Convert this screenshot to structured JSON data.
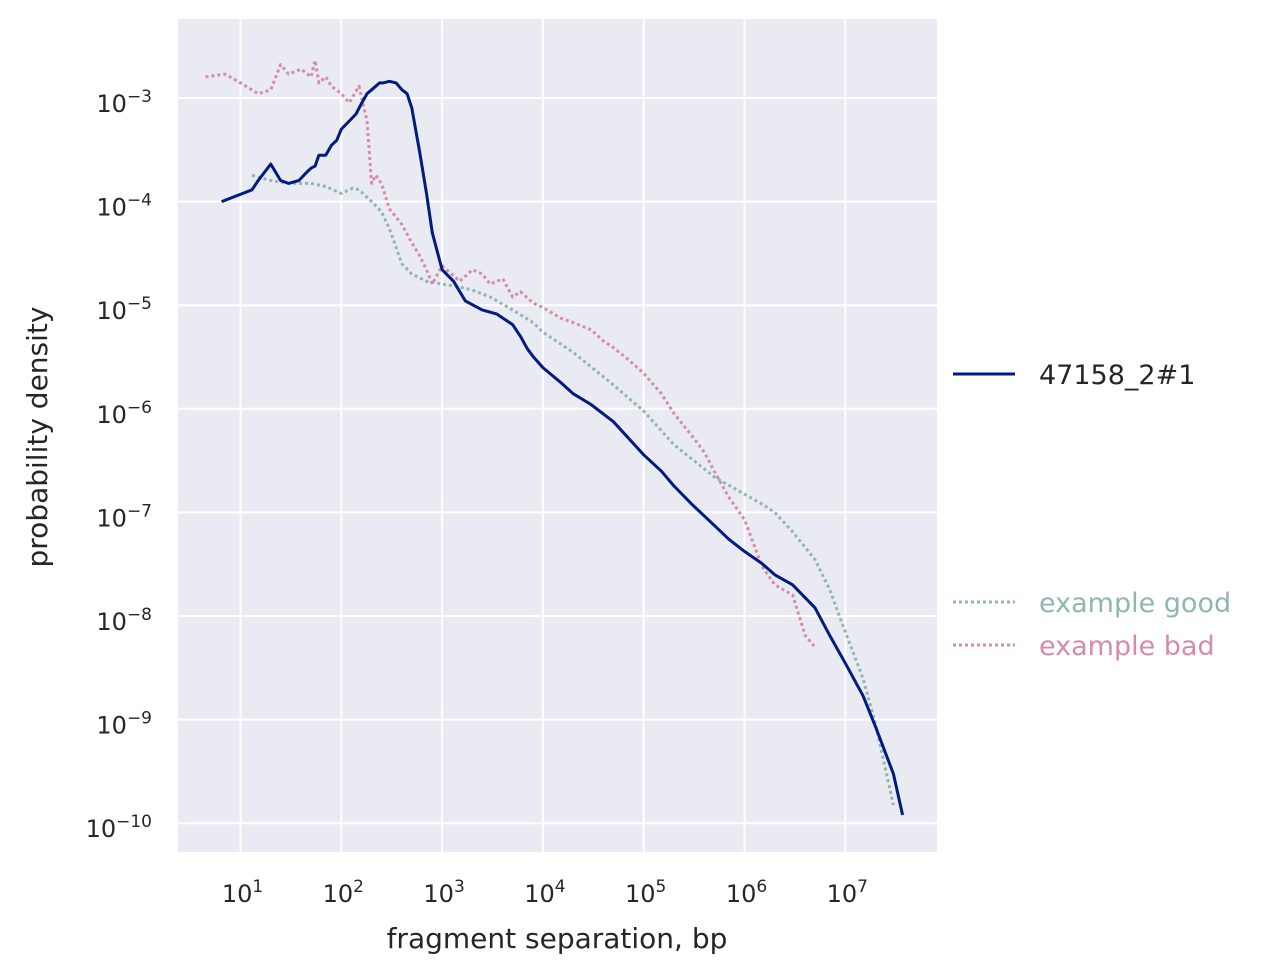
{
  "chart_data": {
    "type": "line",
    "title": "",
    "xlabel": "fragment separation, bp",
    "ylabel": "probability density",
    "xscale": "log",
    "yscale": "log",
    "xlim": [
      2.5,
      80000000
    ],
    "ylim": [
      5e-11,
      0.006
    ],
    "grid": true,
    "background": "#eaeaf2",
    "x_ticks": [
      {
        "base": "10",
        "exp": "1",
        "value": 10
      },
      {
        "base": "10",
        "exp": "2",
        "value": 100
      },
      {
        "base": "10",
        "exp": "3",
        "value": 1000
      },
      {
        "base": "10",
        "exp": "4",
        "value": 10000
      },
      {
        "base": "10",
        "exp": "5",
        "value": 100000
      },
      {
        "base": "10",
        "exp": "6",
        "value": 1000000
      },
      {
        "base": "10",
        "exp": "7",
        "value": 10000000
      }
    ],
    "y_ticks": [
      {
        "base": "10",
        "exp": "−3",
        "value": 0.001
      },
      {
        "base": "10",
        "exp": "−4",
        "value": 0.0001
      },
      {
        "base": "10",
        "exp": "−5",
        "value": 1e-05
      },
      {
        "base": "10",
        "exp": "−6",
        "value": 1e-06
      },
      {
        "base": "10",
        "exp": "−7",
        "value": 1e-07
      },
      {
        "base": "10",
        "exp": "−8",
        "value": 1e-08
      },
      {
        "base": "10",
        "exp": "−9",
        "value": 1e-09
      },
      {
        "base": "10",
        "exp": "−10",
        "value": 1e-10
      }
    ],
    "legend": {
      "placement": "outside-right",
      "entries": [
        {
          "name": "47158_2#1",
          "color": "#001c7f",
          "style": "solid"
        },
        {
          "name": "example good",
          "color": "#8fb7b1",
          "style": "dotted"
        },
        {
          "name": "example bad",
          "color": "#d68ca8",
          "style": "dotted"
        }
      ]
    },
    "series": [
      {
        "name": "47158_2#1",
        "color": "#001c7f",
        "style": "solid",
        "x": [
          6.5,
          13,
          15,
          20,
          25,
          30,
          38,
          45,
          50,
          55,
          60,
          70,
          80,
          90,
          100,
          120,
          140,
          160,
          180,
          200,
          220,
          240,
          260,
          300,
          350,
          400,
          450,
          500,
          600,
          700,
          800,
          1000,
          1300,
          1700,
          2500,
          3500,
          5000,
          6000,
          7000,
          8000,
          10000,
          15000,
          20000,
          30000,
          50000,
          100000,
          150000,
          200000,
          300000,
          500000,
          700000,
          1000000,
          1500000,
          2000000,
          3000000,
          5000000,
          7000000,
          10000000,
          15000000,
          20000000,
          30000000,
          37000000
        ],
        "y": [
          0.0001,
          0.00013,
          0.00016,
          0.00023,
          0.00016,
          0.00015,
          0.00016,
          0.00019,
          0.00021,
          0.00022,
          0.00028,
          0.00028,
          0.00035,
          0.00039,
          0.0005,
          0.0006,
          0.0007,
          0.0009,
          0.0011,
          0.0012,
          0.0013,
          0.0014,
          0.0014,
          0.00145,
          0.0014,
          0.0012,
          0.0011,
          0.0008,
          0.0003,
          0.00012,
          5e-05,
          2.2e-05,
          1.7e-05,
          1.1e-05,
          9e-06,
          8.2e-06,
          6.5e-06,
          5e-06,
          3.8e-06,
          3.2e-06,
          2.5e-06,
          1.8e-06,
          1.4e-06,
          1.1e-06,
          7.5e-07,
          3.6e-07,
          2.5e-07,
          1.8e-07,
          1.2e-07,
          7.5e-08,
          5.5e-08,
          4.2e-08,
          3.2e-08,
          2.5e-08,
          2e-08,
          1.2e-08,
          6.5e-09,
          3.5e-09,
          1.7e-09,
          8.5e-10,
          3e-10,
          1.2e-10
        ]
      },
      {
        "name": "example good",
        "color": "#8fb7b1",
        "style": "dotted",
        "x": [
          13,
          20,
          30,
          50,
          70,
          100,
          130,
          150,
          200,
          250,
          300,
          400,
          500,
          700,
          1000,
          1500,
          2000,
          3000,
          5000,
          8000,
          10000,
          20000,
          50000,
          100000,
          200000,
          500000,
          1000000,
          1500000,
          2000000,
          3000000,
          5000000,
          7000000,
          10000000,
          15000000,
          20000000,
          30000000
        ],
        "y": [
          0.00018,
          0.00016,
          0.00015,
          0.00015,
          0.00014,
          0.00012,
          0.000135,
          0.00013,
          0.0001,
          8e-05,
          5.5e-05,
          2.5e-05,
          2e-05,
          1.7e-05,
          1.6e-05,
          1.5e-05,
          1.4e-05,
          1.2e-05,
          9e-06,
          6.8e-06,
          5.5e-06,
          3.5e-06,
          1.7e-06,
          9.5e-07,
          4.5e-07,
          2.2e-07,
          1.5e-07,
          1.2e-07,
          1e-07,
          6.5e-08,
          3.5e-08,
          1.8e-08,
          7e-09,
          2.5e-09,
          9e-10,
          1.5e-10
        ]
      },
      {
        "name": "example bad",
        "color": "#d68ca8",
        "style": "dotted",
        "x": [
          4.5,
          7,
          10,
          15,
          20,
          25,
          30,
          40,
          50,
          55,
          60,
          70,
          80,
          100,
          120,
          150,
          180,
          200,
          220,
          250,
          300,
          400,
          500,
          600,
          700,
          800,
          1000,
          1500,
          2000,
          2500,
          3000,
          4000,
          5000,
          6000,
          8000,
          10000,
          15000,
          20000,
          30000,
          40000,
          50000,
          70000,
          100000,
          150000,
          200000,
          300000,
          400000,
          500000,
          700000,
          1000000,
          1500000,
          2000000,
          3000000,
          4000000,
          5000000
        ],
        "y": [
          0.0016,
          0.0017,
          0.0014,
          0.0011,
          0.0012,
          0.0021,
          0.0017,
          0.0019,
          0.0016,
          0.0023,
          0.0014,
          0.0016,
          0.0013,
          0.0011,
          0.0009,
          0.0013,
          0.0006,
          0.00015,
          0.00018,
          0.00015,
          8.5e-05,
          6e-05,
          4e-05,
          3e-05,
          2.2e-05,
          1.6e-05,
          2.4e-05,
          1.7e-05,
          2.2e-05,
          2e-05,
          1.6e-05,
          1.8e-05,
          1.2e-05,
          1.35e-05,
          1.05e-05,
          9.5e-06,
          7.5e-06,
          6.8e-06,
          5.8e-06,
          4.5e-06,
          3.9e-06,
          3e-06,
          2.2e-06,
          1.4e-06,
          9e-07,
          5.5e-07,
          3.8e-07,
          2.5e-07,
          1.4e-07,
          8.5e-08,
          3e-08,
          2e-08,
          1.6e-08,
          6.5e-09,
          5e-09
        ]
      }
    ]
  }
}
